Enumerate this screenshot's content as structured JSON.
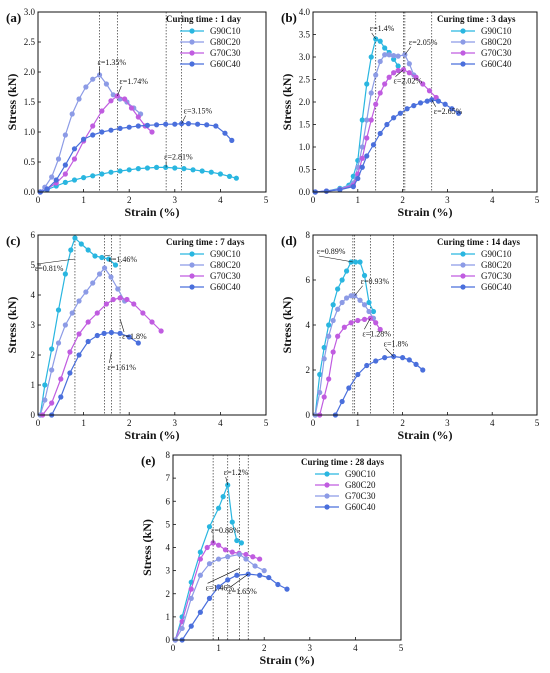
{
  "chart_data": [
    {
      "type": "line",
      "panel_label": "(a)",
      "legend_title": "Curing time : 1 day",
      "xlabel": "Strain (%)",
      "ylabel": "Stress (kN)",
      "xlim": [
        0,
        5
      ],
      "ylim": [
        0,
        3.0
      ],
      "xticks": [
        "0",
        "1",
        "2",
        "3",
        "4",
        "5"
      ],
      "yticks": [
        "0.0",
        "0.5",
        "1.0",
        "1.5",
        "2.0",
        "2.5",
        "3.0"
      ],
      "ytick_values": [
        0,
        0.5,
        1.0,
        1.5,
        2.0,
        2.5,
        3.0
      ],
      "vlines": [
        1.35,
        1.74,
        2.81,
        3.15
      ],
      "series": [
        {
          "name": "G90C10",
          "color": "#29b6e0",
          "x": [
            0.05,
            0.2,
            0.4,
            0.6,
            0.8,
            1.0,
            1.2,
            1.4,
            1.6,
            1.8,
            2.0,
            2.2,
            2.4,
            2.6,
            2.8,
            3.0,
            3.2,
            3.4,
            3.6,
            3.8,
            4.0,
            4.2,
            4.35
          ],
          "y": [
            0.0,
            0.04,
            0.1,
            0.16,
            0.2,
            0.24,
            0.27,
            0.3,
            0.33,
            0.35,
            0.37,
            0.39,
            0.4,
            0.41,
            0.41,
            0.4,
            0.39,
            0.37,
            0.35,
            0.33,
            0.3,
            0.26,
            0.23
          ]
        },
        {
          "name": "G80C20",
          "color": "#8c9be6",
          "x": [
            0.05,
            0.15,
            0.3,
            0.45,
            0.6,
            0.75,
            0.9,
            1.05,
            1.2,
            1.35,
            1.5,
            1.65,
            1.8,
            1.95,
            2.1,
            2.25
          ],
          "y": [
            0.0,
            0.08,
            0.25,
            0.55,
            0.95,
            1.3,
            1.55,
            1.75,
            1.88,
            1.95,
            1.8,
            1.62,
            1.55,
            1.5,
            1.4,
            1.3
          ]
        },
        {
          "name": "G70C30",
          "color": "#c05ce0",
          "x": [
            0.05,
            0.2,
            0.4,
            0.6,
            0.8,
            1.0,
            1.2,
            1.4,
            1.6,
            1.74,
            1.9,
            2.05,
            2.2,
            2.35,
            2.5
          ],
          "y": [
            0.0,
            0.05,
            0.15,
            0.3,
            0.55,
            0.85,
            1.1,
            1.35,
            1.52,
            1.6,
            1.55,
            1.4,
            1.25,
            1.1,
            1.0
          ]
        },
        {
          "name": "G60C40",
          "color": "#4a6fdc",
          "x": [
            0.05,
            0.2,
            0.4,
            0.6,
            0.8,
            1.0,
            1.2,
            1.4,
            1.6,
            1.8,
            2.0,
            2.2,
            2.4,
            2.6,
            2.8,
            3.0,
            3.15,
            3.3,
            3.5,
            3.7,
            3.9,
            4.1,
            4.25
          ],
          "y": [
            0.0,
            0.05,
            0.2,
            0.45,
            0.72,
            0.88,
            0.95,
            1.0,
            1.03,
            1.06,
            1.08,
            1.1,
            1.11,
            1.12,
            1.13,
            1.13,
            1.14,
            1.14,
            1.13,
            1.12,
            1.1,
            0.98,
            0.86
          ]
        }
      ],
      "annotations": [
        {
          "text": "ε=1.35%",
          "x": 1.35,
          "y": 1.95
        },
        {
          "text": "ε=1.74%",
          "x": 1.74,
          "y": 1.6
        },
        {
          "text": "ε=3.15%",
          "x": 3.15,
          "y": 1.14
        },
        {
          "text": "ε=2.81%",
          "x": 2.81,
          "y": 0.41
        }
      ]
    },
    {
      "type": "line",
      "panel_label": "(b)",
      "legend_title": "Curing time : 3 days",
      "xlabel": "Strain (%)",
      "ylabel": "Stress (kN)",
      "xlim": [
        0,
        5
      ],
      "ylim": [
        0,
        4.0
      ],
      "xticks": [
        "0",
        "1",
        "2",
        "3",
        "4",
        "5"
      ],
      "yticks": [
        "0.0",
        "0.5",
        "1.0",
        "1.5",
        "2.0",
        "2.5",
        "3.0",
        "3.5",
        "4.0"
      ],
      "ytick_values": [
        0,
        0.5,
        1.0,
        1.5,
        2.0,
        2.5,
        3.0,
        3.5,
        4.0
      ],
      "vlines": [
        1.4,
        2.02,
        2.05,
        2.65
      ],
      "series": [
        {
          "name": "G90C10",
          "color": "#29b6e0",
          "x": [
            0.05,
            0.3,
            0.6,
            0.8,
            0.9,
            1.0,
            1.1,
            1.2,
            1.3,
            1.4,
            1.5,
            1.6,
            1.7,
            1.8,
            1.9
          ],
          "y": [
            0.0,
            0.02,
            0.08,
            0.15,
            0.35,
            0.7,
            1.6,
            2.4,
            3.0,
            3.4,
            3.35,
            3.2,
            3.1,
            2.95,
            2.8
          ]
        },
        {
          "name": "G80C20",
          "color": "#8c9be6",
          "x": [
            0.05,
            0.3,
            0.6,
            0.9,
            1.0,
            1.1,
            1.2,
            1.3,
            1.4,
            1.5,
            1.6,
            1.7,
            1.8,
            1.9,
            2.05,
            2.15,
            2.25
          ],
          "y": [
            0.0,
            0.02,
            0.06,
            0.2,
            0.55,
            1.0,
            1.6,
            2.2,
            2.6,
            2.9,
            3.05,
            3.05,
            3.03,
            3.02,
            3.05,
            2.85,
            2.6
          ]
        },
        {
          "name": "G70C30",
          "color": "#c05ce0",
          "x": [
            0.05,
            0.3,
            0.6,
            0.9,
            1.0,
            1.1,
            1.2,
            1.3,
            1.4,
            1.5,
            1.6,
            1.7,
            1.8,
            1.9,
            2.02,
            2.15,
            2.3,
            2.45,
            2.6,
            2.75
          ],
          "y": [
            0.0,
            0.02,
            0.06,
            0.15,
            0.4,
            0.75,
            1.2,
            1.6,
            1.95,
            2.2,
            2.4,
            2.55,
            2.65,
            2.7,
            2.72,
            2.65,
            2.55,
            2.4,
            2.25,
            2.1
          ]
        },
        {
          "name": "G60C40",
          "color": "#4a6fdc",
          "x": [
            0.05,
            0.3,
            0.6,
            0.9,
            1.0,
            1.1,
            1.2,
            1.35,
            1.5,
            1.65,
            1.8,
            1.95,
            2.1,
            2.25,
            2.4,
            2.55,
            2.65,
            2.8,
            2.95,
            3.1,
            3.25
          ],
          "y": [
            0.0,
            0.02,
            0.05,
            0.12,
            0.3,
            0.55,
            0.8,
            1.05,
            1.3,
            1.5,
            1.65,
            1.75,
            1.85,
            1.92,
            1.98,
            2.02,
            2.05,
            2.02,
            1.95,
            1.85,
            1.75
          ]
        }
      ],
      "annotations": [
        {
          "text": "ε=1.4%",
          "x": 1.4,
          "y": 3.4
        },
        {
          "text": "ε=2.05%",
          "x": 2.05,
          "y": 3.05
        },
        {
          "text": "ε=2.02%",
          "x": 2.02,
          "y": 2.72
        },
        {
          "text": "ε=2.65%",
          "x": 2.65,
          "y": 2.05
        }
      ]
    },
    {
      "type": "line",
      "panel_label": "(c)",
      "legend_title": "Curing time : 7 days",
      "xlabel": "Strain (%)",
      "ylabel": "Stress (kN)",
      "xlim": [
        0,
        5
      ],
      "ylim": [
        0,
        6
      ],
      "xticks": [
        "0",
        "1",
        "2",
        "3",
        "4",
        "5"
      ],
      "yticks": [
        "0",
        "1",
        "2",
        "3",
        "4",
        "5",
        "6"
      ],
      "ytick_values": [
        0,
        1,
        2,
        3,
        4,
        5,
        6
      ],
      "vlines": [
        0.81,
        1.46,
        1.61,
        1.8
      ],
      "series": [
        {
          "name": "G90C10",
          "color": "#29b6e0",
          "x": [
            0.05,
            0.15,
            0.3,
            0.45,
            0.6,
            0.72,
            0.81,
            0.95,
            1.1,
            1.25,
            1.4,
            1.55,
            1.7
          ],
          "y": [
            0.0,
            1.0,
            2.2,
            3.5,
            4.7,
            5.5,
            5.9,
            5.7,
            5.5,
            5.3,
            5.25,
            5.2,
            5.0
          ]
        },
        {
          "name": "G80C20",
          "color": "#8c9be6",
          "x": [
            0.05,
            0.15,
            0.3,
            0.45,
            0.6,
            0.75,
            0.9,
            1.05,
            1.2,
            1.35,
            1.46,
            1.6,
            1.75,
            1.9
          ],
          "y": [
            0.0,
            0.5,
            1.5,
            2.4,
            3.0,
            3.4,
            3.8,
            4.1,
            4.4,
            4.7,
            4.9,
            4.6,
            4.2,
            3.8
          ]
        },
        {
          "name": "G70C30",
          "color": "#c05ce0",
          "x": [
            0.1,
            0.3,
            0.5,
            0.7,
            0.9,
            1.1,
            1.3,
            1.5,
            1.65,
            1.8,
            1.95,
            2.1,
            2.3,
            2.5,
            2.7
          ],
          "y": [
            0.0,
            0.4,
            1.2,
            2.1,
            2.7,
            3.1,
            3.4,
            3.7,
            3.85,
            3.9,
            3.85,
            3.7,
            3.4,
            3.1,
            2.8
          ]
        },
        {
          "name": "G60C40",
          "color": "#4a6fdc",
          "x": [
            0.3,
            0.5,
            0.7,
            0.9,
            1.1,
            1.3,
            1.45,
            1.61,
            1.8,
            2.0,
            2.2
          ],
          "y": [
            0.0,
            0.6,
            1.4,
            2.0,
            2.45,
            2.65,
            2.72,
            2.75,
            2.72,
            2.6,
            2.4
          ]
        }
      ],
      "annotations": [
        {
          "text": "ε=0.81%",
          "x": 0.81,
          "y": 5.2
        },
        {
          "text": "ε=1.46%",
          "x": 1.46,
          "y": 5.3
        },
        {
          "text": "ε=1.8%",
          "x": 1.8,
          "y": 3.2
        },
        {
          "text": "ε=1.61%",
          "x": 1.61,
          "y": 2.1
        }
      ]
    },
    {
      "type": "line",
      "panel_label": "(d)",
      "legend_title": "Curing time : 14 days",
      "xlabel": "Strain (%)",
      "ylabel": "Stress (kN)",
      "xlim": [
        0,
        5
      ],
      "ylim": [
        0,
        8
      ],
      "xticks": [
        "0",
        "1",
        "2",
        "3",
        "4",
        "5"
      ],
      "yticks": [
        "0",
        "2",
        "4",
        "6",
        "8"
      ],
      "ytick_values": [
        0,
        2,
        4,
        6,
        8
      ],
      "vlines": [
        0.89,
        0.93,
        1.28,
        1.8
      ],
      "series": [
        {
          "name": "G90C10",
          "color": "#29b6e0",
          "x": [
            0.05,
            0.15,
            0.25,
            0.35,
            0.45,
            0.55,
            0.65,
            0.75,
            0.85,
            0.95,
            1.05,
            1.15,
            1.25,
            1.35
          ],
          "y": [
            0.0,
            1.8,
            3.0,
            4.0,
            4.9,
            5.6,
            6.0,
            6.4,
            6.8,
            6.8,
            6.8,
            6.2,
            5.0,
            4.6
          ]
        },
        {
          "name": "G80C20",
          "color": "#8c9be6",
          "x": [
            0.05,
            0.15,
            0.25,
            0.35,
            0.45,
            0.55,
            0.65,
            0.75,
            0.85,
            0.93,
            1.05,
            1.15,
            1.25,
            1.35
          ],
          "y": [
            0.0,
            1.0,
            2.5,
            3.5,
            4.2,
            4.7,
            5.0,
            5.2,
            5.3,
            5.3,
            5.1,
            4.9,
            4.6,
            4.3
          ]
        },
        {
          "name": "G70C30",
          "color": "#c05ce0",
          "x": [
            0.15,
            0.25,
            0.35,
            0.45,
            0.55,
            0.7,
            0.85,
            1.0,
            1.15,
            1.28,
            1.4,
            1.5
          ],
          "y": [
            0.0,
            0.8,
            1.6,
            2.8,
            3.5,
            3.9,
            4.1,
            4.2,
            4.25,
            4.3,
            4.1,
            3.8
          ]
        },
        {
          "name": "G60C40",
          "color": "#4a6fdc",
          "x": [
            0.5,
            0.65,
            0.8,
            1.0,
            1.2,
            1.4,
            1.6,
            1.8,
            2.0,
            2.15,
            2.3,
            2.45
          ],
          "y": [
            0.0,
            0.6,
            1.2,
            1.8,
            2.2,
            2.4,
            2.55,
            2.6,
            2.55,
            2.45,
            2.25,
            2.0
          ]
        }
      ],
      "annotations": [
        {
          "text": "ε=0.89%",
          "x": 0.89,
          "y": 6.8
        },
        {
          "text": "ε=0.93%",
          "x": 0.93,
          "y": 5.3
        },
        {
          "text": "ε=1.28%",
          "x": 1.28,
          "y": 4.3
        },
        {
          "text": "ε=1.8%",
          "x": 1.8,
          "y": 2.6
        }
      ]
    },
    {
      "type": "line",
      "panel_label": "(e)",
      "legend_title": "Curing time : 28 days",
      "xlabel": "Strain (%)",
      "ylabel": "Stress (kN)",
      "xlim": [
        0,
        5
      ],
      "ylim": [
        0,
        8
      ],
      "xticks": [
        "0",
        "1",
        "2",
        "3",
        "4",
        "5"
      ],
      "yticks": [
        "0",
        "1",
        "2",
        "3",
        "4",
        "5",
        "6",
        "7",
        "8"
      ],
      "ytick_values": [
        0,
        1,
        2,
        3,
        4,
        5,
        6,
        7,
        8
      ],
      "vlines": [
        0.88,
        1.2,
        1.46,
        1.65
      ],
      "series": [
        {
          "name": "G90C10",
          "color": "#29b6e0",
          "x": [
            0.05,
            0.2,
            0.4,
            0.6,
            0.8,
            1.0,
            1.1,
            1.2,
            1.3,
            1.4,
            1.5
          ],
          "y": [
            0.0,
            1.0,
            2.5,
            3.8,
            4.9,
            5.7,
            6.2,
            6.7,
            5.1,
            4.3,
            4.2
          ]
        },
        {
          "name": "G80C20",
          "color": "#c05ce0",
          "x": [
            0.05,
            0.2,
            0.4,
            0.6,
            0.75,
            0.88,
            1.0,
            1.15,
            1.3,
            1.45,
            1.6,
            1.75,
            1.9
          ],
          "y": [
            0.0,
            0.8,
            2.2,
            3.5,
            4.0,
            4.2,
            4.1,
            3.9,
            3.8,
            3.75,
            3.7,
            3.6,
            3.5
          ]
        },
        {
          "name": "G70C30",
          "color": "#8c9be6",
          "x": [
            0.05,
            0.2,
            0.4,
            0.6,
            0.8,
            1.0,
            1.2,
            1.46,
            1.6,
            1.8,
            2.0
          ],
          "y": [
            0.0,
            0.5,
            1.8,
            2.8,
            3.3,
            3.5,
            3.6,
            3.7,
            3.5,
            3.2,
            3.0
          ]
        },
        {
          "name": "G60C40",
          "color": "#4a6fdc",
          "x": [
            0.2,
            0.4,
            0.6,
            0.8,
            1.0,
            1.2,
            1.4,
            1.65,
            1.9,
            2.1,
            2.3,
            2.5
          ],
          "y": [
            0.0,
            0.6,
            1.2,
            1.8,
            2.3,
            2.6,
            2.8,
            2.85,
            2.8,
            2.7,
            2.4,
            2.2
          ]
        }
      ],
      "annotations": [
        {
          "text": "ε=1.2%",
          "x": 1.2,
          "y": 6.7
        },
        {
          "text": "ε=0.88%",
          "x": 0.88,
          "y": 4.2
        },
        {
          "text": "ε=1.46%",
          "x": 1.46,
          "y": 3.1
        },
        {
          "text": "ε=1.65%",
          "x": 1.65,
          "y": 2.85
        }
      ]
    }
  ]
}
